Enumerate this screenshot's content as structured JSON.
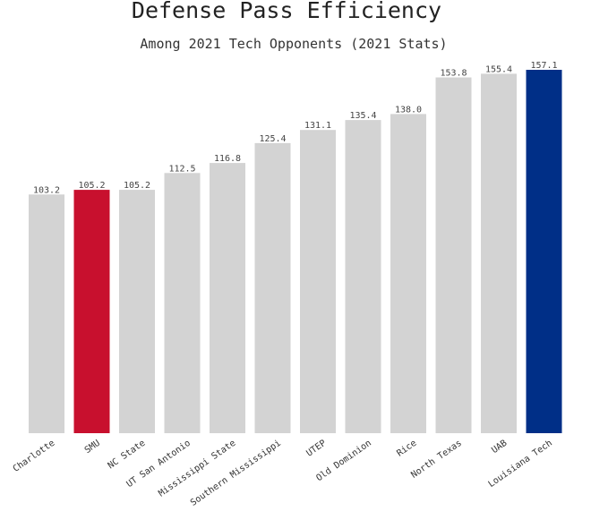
{
  "chart_data": {
    "type": "bar",
    "title": "Defense Pass Efficiency",
    "subtitle": "Among 2021 Tech Opponents (2021 Stats)",
    "xlabel": "",
    "ylabel": "",
    "ylim": [
      0,
      157.1
    ],
    "grid": false,
    "categories": [
      "Charlotte",
      "SMU",
      "NC State",
      "UT San Antonio",
      "Mississippi State",
      "Southern Mississippi",
      "UTEP",
      "Old Dominion",
      "Rice",
      "North Texas",
      "UAB",
      "Louisiana Tech"
    ],
    "values": [
      103.2,
      105.2,
      105.2,
      112.5,
      116.8,
      125.4,
      131.1,
      135.4,
      138.0,
      153.8,
      155.4,
      157.1
    ],
    "value_labels": [
      "103.2",
      "105.2",
      "105.2",
      "112.5",
      "116.8",
      "125.4",
      "131.1",
      "135.4",
      "138.0",
      "153.8",
      "155.4",
      "157.1"
    ],
    "colors": {
      "default": "#d3d3d3",
      "highlight_smu": "#c8102e",
      "highlight_louisiana_tech": "#002f87"
    },
    "bar_colors": [
      "#d3d3d3",
      "#c8102e",
      "#d3d3d3",
      "#d3d3d3",
      "#d3d3d3",
      "#d3d3d3",
      "#d3d3d3",
      "#d3d3d3",
      "#d3d3d3",
      "#d3d3d3",
      "#d3d3d3",
      "#002f87"
    ]
  }
}
